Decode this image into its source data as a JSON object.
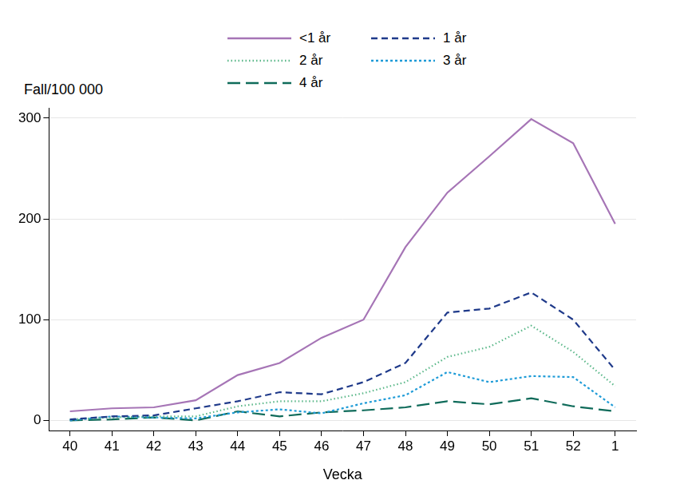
{
  "chart_data": {
    "type": "line",
    "x_label": "Vecka",
    "y_label": "Fall/100 000",
    "categories": [
      "40",
      "41",
      "42",
      "43",
      "44",
      "45",
      "46",
      "47",
      "48",
      "49",
      "50",
      "51",
      "52",
      "1"
    ],
    "series": [
      {
        "name": "<1 år",
        "color": "#a675b6",
        "line_style": "solid",
        "values": [
          9,
          12,
          13,
          20,
          45,
          57,
          82,
          100,
          172,
          226,
          262,
          299,
          275,
          195
        ]
      },
      {
        "name": "1 år",
        "color": "#1f3a8a",
        "line_style": "dashed",
        "values": [
          1,
          4,
          5,
          12,
          19,
          28,
          26,
          38,
          57,
          107,
          111,
          127,
          100,
          50
        ]
      },
      {
        "name": "2 år",
        "color": "#5cb88a",
        "line_style": "dotted",
        "values": [
          1,
          3,
          4,
          4,
          14,
          19,
          19,
          27,
          38,
          63,
          73,
          94,
          68,
          34
        ]
      },
      {
        "name": "3 år",
        "color": "#1e9bd7",
        "line_style": "shortdash",
        "values": [
          0,
          4,
          3,
          2,
          8,
          11,
          7,
          17,
          25,
          48,
          38,
          44,
          43,
          13
        ]
      },
      {
        "name": "4 år",
        "color": "#0f6b5a",
        "line_style": "longdash",
        "values": [
          0,
          1,
          3,
          0,
          9,
          4,
          8,
          10,
          13,
          19,
          16,
          22,
          14,
          9
        ]
      }
    ],
    "ylim": [
      -10,
      310
    ],
    "yticks": [
      0,
      100,
      200,
      300
    ],
    "grid": true,
    "legend": "top"
  }
}
